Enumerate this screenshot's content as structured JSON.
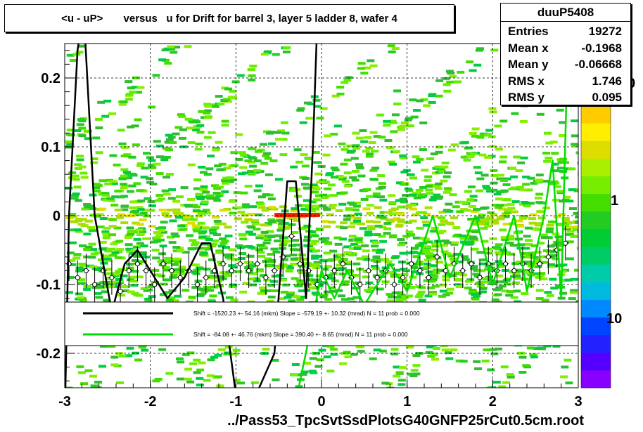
{
  "title": "<u - uP>       versus   u for Drift for barrel 3, layer 5 ladder 8, wafer 4",
  "stats": {
    "name": "duuP5408",
    "entries_label": "Entries",
    "entries": "19272",
    "meanx_label": "Mean x",
    "meanx": "-0.1968",
    "meany_label": "Mean y",
    "meany": "-0.06668",
    "rmsx_label": "RMS x",
    "rmsx": "1.746",
    "rmsy_label": "RMS y",
    "rmsy": "0.095"
  },
  "x_axis_title": "../Pass53_TpcSvtSsdPlotsG40GNFP25rCut0.5cm.root",
  "colors": {
    "frame": "#000000",
    "fit1": "#000000",
    "fit2": "#00dd00",
    "heat_low": "#22cc22",
    "heat_mid": "#dddd00",
    "heat_high": "#ee2200"
  },
  "chart_data": {
    "type": "heatmap",
    "xlim": [
      -3,
      3
    ],
    "ylim": [
      -0.25,
      0.25
    ],
    "x_ticks": [
      "-3",
      "-2",
      "-1",
      "0",
      "1",
      "2",
      "3"
    ],
    "x_tick_values": [
      -3,
      -2,
      -1,
      0,
      1,
      2,
      3
    ],
    "y_ticks": [
      "-0.2",
      "-0.1",
      "0",
      "0.1",
      "0.2"
    ],
    "y_tick_values": [
      -0.2,
      -0.1,
      0,
      0.1,
      0.2
    ],
    "color_scale_labels": [
      "10",
      "1",
      "0"
    ],
    "color_scale_values": [
      10,
      1,
      0
    ],
    "grid": true,
    "legend": [
      {
        "text": "Shift = -1520.23 +- 54.16 (mkm) Slope =  -579.19 +- 10.32 (mrad)  N = 11 prob = 0.000",
        "color": "#000000"
      },
      {
        "text": "Shift =   -84.08 +- 46.76 (mkm) Slope =   390.40 +- 8.65 (mrad)  N = 11 prob = 0.000",
        "color": "#00dd00"
      }
    ],
    "profile_points": {
      "x": [
        -2.95,
        -2.85,
        -2.75,
        -2.65,
        -2.55,
        -2.45,
        -2.35,
        -2.25,
        -2.15,
        -2.05,
        -1.95,
        -1.85,
        -1.75,
        -1.65,
        -1.55,
        -1.45,
        -1.35,
        -1.25,
        -1.15,
        -1.05,
        -0.95,
        -0.85,
        -0.75,
        -0.65,
        -0.55,
        -0.45,
        -0.35,
        -0.25,
        -0.15,
        -0.05,
        0.05,
        0.15,
        0.25,
        0.35,
        0.45,
        0.55,
        0.65,
        0.75,
        0.85,
        0.95,
        1.05,
        1.15,
        1.25,
        1.35,
        1.45,
        1.55,
        1.65,
        1.75,
        1.85,
        1.95,
        2.05,
        2.15,
        2.25,
        2.35,
        2.45,
        2.55,
        2.65,
        2.75,
        2.85
      ],
      "y": [
        -0.07,
        -0.09,
        -0.08,
        -0.1,
        -0.08,
        -0.09,
        -0.11,
        -0.08,
        -0.07,
        -0.08,
        -0.1,
        -0.07,
        -0.08,
        -0.09,
        -0.08,
        -0.1,
        -0.09,
        -0.08,
        -0.07,
        -0.08,
        -0.07,
        -0.08,
        -0.07,
        -0.09,
        -0.08,
        -0.06,
        -0.03,
        -0.07,
        -0.08,
        -0.1,
        -0.09,
        -0.08,
        -0.07,
        -0.09,
        -0.1,
        -0.08,
        -0.09,
        -0.08,
        -0.1,
        -0.09,
        -0.07,
        -0.08,
        -0.09,
        -0.06,
        -0.08,
        -0.07,
        -0.08,
        -0.07,
        -0.09,
        -0.07,
        -0.08,
        -0.07,
        -0.08,
        -0.07,
        -0.08,
        -0.07,
        -0.06,
        -0.05,
        -0.04
      ]
    }
  }
}
